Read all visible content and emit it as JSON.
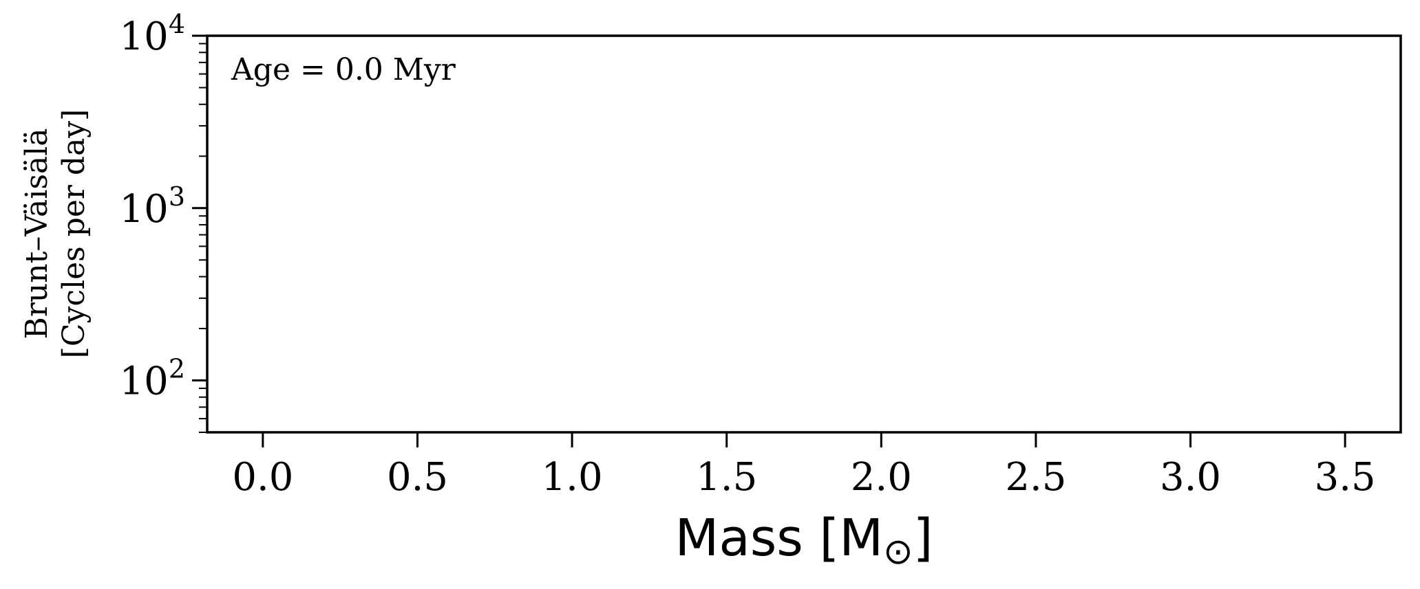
{
  "chart_data": {
    "type": "line",
    "title": "",
    "annotation": "Age = 0.0 Myr",
    "xlabel_text": "Mass [M",
    "xlabel_sub": "⊙",
    "xlabel_close": "]",
    "ylabel_line1": "Brunt–Väisälä",
    "ylabel_line2": "[Cycles per day]",
    "xscale": "linear",
    "yscale": "log",
    "xlim": [
      -0.18,
      3.68
    ],
    "ylim": [
      50,
      10000
    ],
    "xticks": [
      0.0,
      0.5,
      1.0,
      1.5,
      2.0,
      2.5,
      3.0,
      3.5
    ],
    "xtick_labels": [
      "0.0",
      "0.5",
      "1.0",
      "1.5",
      "2.0",
      "2.5",
      "3.0",
      "3.5"
    ],
    "yticks": [
      100,
      1000,
      10000
    ],
    "ytick_labels": [
      {
        "base": "10",
        "exp": "2"
      },
      {
        "base": "10",
        "exp": "3"
      },
      {
        "base": "10",
        "exp": "4"
      }
    ],
    "grid": false,
    "legend": "none",
    "series": [],
    "colors": {
      "axis": "#000000",
      "background": "#ffffff"
    }
  }
}
